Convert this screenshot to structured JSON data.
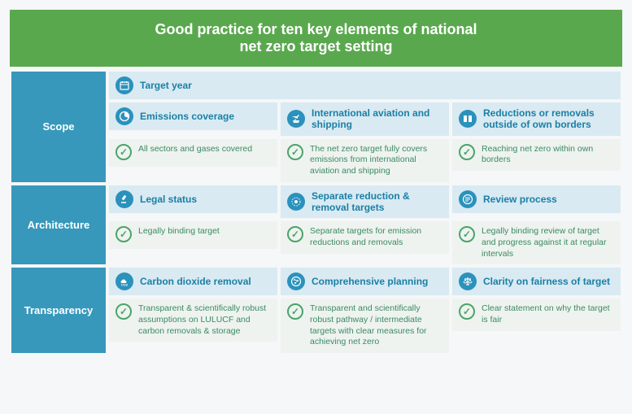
{
  "colors": {
    "headerBg": "#5aa84e",
    "headerText": "#ffffff",
    "sectionBg": "#3798bb",
    "sectionText": "#ffffff",
    "elementHeaderBg": "#d9eaf2",
    "elementHeaderText": "#1a7fa6",
    "descBg": "#eef3ef",
    "descText": "#3b8a62",
    "iconBg": "#2a92bc",
    "iconFg": "#ffffff",
    "checkBorder": "#4aa46a",
    "checkMark": "#4aa46a"
  },
  "header": {
    "line1": "Good practice for ten key elements of national",
    "line2": "net zero target setting",
    "fontSize": 18
  },
  "sections": [
    {
      "label": "Scope",
      "topRow": {
        "icon": "calendar",
        "title": "Target year"
      },
      "elements": [
        {
          "icon": "pie",
          "title": "Emissions coverage",
          "desc": "All sectors and gases covered"
        },
        {
          "icon": "plane-ship",
          "title": "International aviation and shipping",
          "desc": "The net zero target fully covers emissions from international aviation and shipping"
        },
        {
          "icon": "borders",
          "title": "Reductions or removals outside of own borders",
          "desc": "Reaching net zero within own borders"
        }
      ]
    },
    {
      "label": "Architecture",
      "elements": [
        {
          "icon": "gavel",
          "title": "Legal status",
          "desc": "Legally binding target"
        },
        {
          "icon": "separate",
          "title": "Separate reduction & removal targets",
          "desc": "Separate targets for emission reductions and removals"
        },
        {
          "icon": "review",
          "title": "Review process",
          "desc": "Legally binding review of target and progress against it at regular intervals"
        }
      ]
    },
    {
      "label": "Transparency",
      "elements": [
        {
          "icon": "cloud-co2",
          "title": "Carbon dioxide removal",
          "desc": "Transparent & scientifically robust assumptions on LULUCF and carbon removals & storage"
        },
        {
          "icon": "planning",
          "title": "Comprehensive planning",
          "desc": "Transparent and scientifically robust pathway / intermediate targets with clear measures for achieving net zero"
        },
        {
          "icon": "scales",
          "title": "Clarity on fairness of target",
          "desc": "Clear statement on why the target is fair"
        }
      ]
    }
  ]
}
